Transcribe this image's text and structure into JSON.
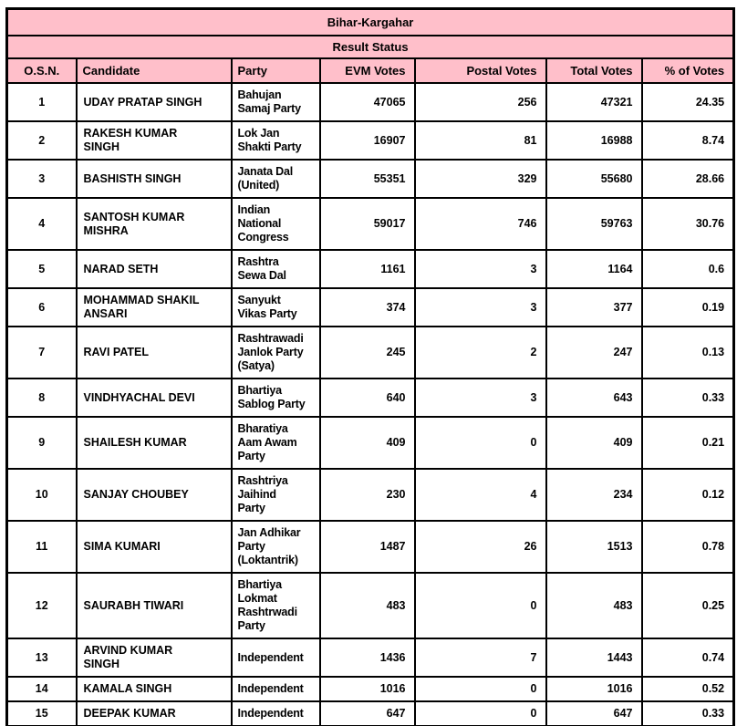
{
  "table": {
    "title": "Bihar-Kargahar",
    "subtitle": "Result Status",
    "columns": [
      "O.S.N.",
      "Candidate",
      "Party",
      "EVM Votes",
      "Postal Votes",
      "Total Votes",
      "% of Votes"
    ],
    "rows": [
      {
        "osn": "1",
        "candidate": "UDAY PRATAP SINGH",
        "party": "Bahujan\nSamaj Party",
        "evm": "47065",
        "postal": "256",
        "total": "47321",
        "pct": "24.35"
      },
      {
        "osn": "2",
        "candidate": "RAKESH KUMAR\nSINGH",
        "party": "Lok Jan\nShakti Party",
        "evm": "16907",
        "postal": "81",
        "total": "16988",
        "pct": "8.74"
      },
      {
        "osn": "3",
        "candidate": "BASHISTH SINGH",
        "party": "Janata Dal\n(United)",
        "evm": "55351",
        "postal": "329",
        "total": "55680",
        "pct": "28.66"
      },
      {
        "osn": "4",
        "candidate": "SANTOSH KUMAR\nMISHRA",
        "party": "Indian\nNational\nCongress",
        "evm": "59017",
        "postal": "746",
        "total": "59763",
        "pct": "30.76"
      },
      {
        "osn": "5",
        "candidate": "NARAD SETH",
        "party": "Rashtra\nSewa Dal",
        "evm": "1161",
        "postal": "3",
        "total": "1164",
        "pct": "0.6"
      },
      {
        "osn": "6",
        "candidate": "MOHAMMAD SHAKIL\nANSARI",
        "party": "Sanyukt\nVikas Party",
        "evm": "374",
        "postal": "3",
        "total": "377",
        "pct": "0.19"
      },
      {
        "osn": "7",
        "candidate": "RAVI PATEL",
        "party": "Rashtrawadi\nJanlok Party\n(Satya)",
        "evm": "245",
        "postal": "2",
        "total": "247",
        "pct": "0.13"
      },
      {
        "osn": "8",
        "candidate": "VINDHYACHAL DEVI",
        "party": "Bhartiya\nSablog Party",
        "evm": "640",
        "postal": "3",
        "total": "643",
        "pct": "0.33"
      },
      {
        "osn": "9",
        "candidate": "SHAILESH KUMAR",
        "party": "Bharatiya\nAam Awam\nParty",
        "evm": "409",
        "postal": "0",
        "total": "409",
        "pct": "0.21"
      },
      {
        "osn": "10",
        "candidate": "SANJAY CHOUBEY",
        "party": "Rashtriya\nJaihind\nParty",
        "evm": "230",
        "postal": "4",
        "total": "234",
        "pct": "0.12"
      },
      {
        "osn": "11",
        "candidate": "SIMA KUMARI",
        "party": "Jan Adhikar\nParty\n(Loktantrik)",
        "evm": "1487",
        "postal": "26",
        "total": "1513",
        "pct": "0.78"
      },
      {
        "osn": "12",
        "candidate": "SAURABH TIWARI",
        "party": "Bhartiya\nLokmat\nRashtrwadi\nParty",
        "evm": "483",
        "postal": "0",
        "total": "483",
        "pct": "0.25"
      },
      {
        "osn": "13",
        "candidate": "ARVIND KUMAR\nSINGH",
        "party": "Independent",
        "evm": "1436",
        "postal": "7",
        "total": "1443",
        "pct": "0.74"
      },
      {
        "osn": "14",
        "candidate": "KAMALA SINGH",
        "party": "Independent",
        "evm": "1016",
        "postal": "0",
        "total": "1016",
        "pct": "0.52"
      },
      {
        "osn": "15",
        "candidate": "DEEPAK KUMAR",
        "party": "Independent",
        "evm": "647",
        "postal": "0",
        "total": "647",
        "pct": "0.33"
      }
    ]
  },
  "colors": {
    "header_bg": "#ffbfca",
    "row_bg": "#ffffff",
    "border": "#000000",
    "text": "#000000"
  }
}
